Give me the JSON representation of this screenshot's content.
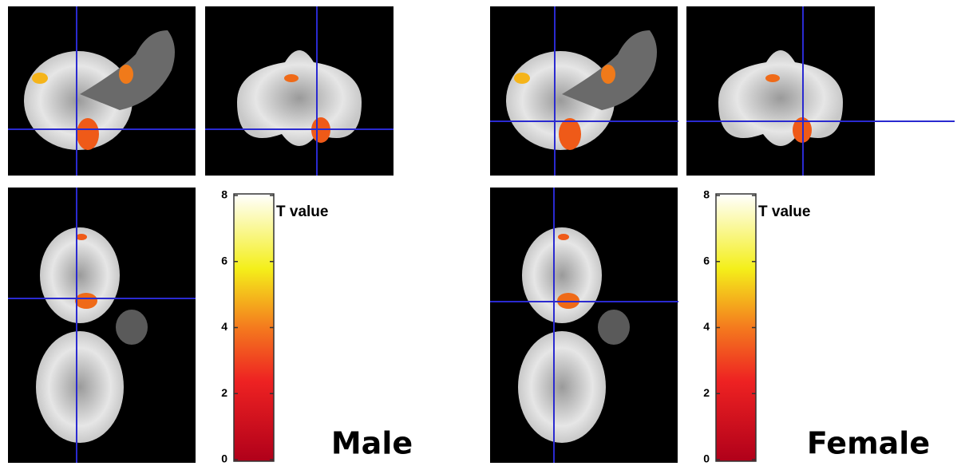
{
  "panels": [
    {
      "label": "Male",
      "colorbar": {
        "title": "T value",
        "lim": [
          0,
          8
        ],
        "ticks": [
          0,
          2,
          4,
          6,
          8
        ]
      }
    },
    {
      "label": "Female",
      "colorbar": {
        "title": "T value",
        "lim": [
          0,
          8
        ],
        "ticks": [
          0,
          2,
          4,
          6,
          8
        ]
      }
    }
  ]
}
